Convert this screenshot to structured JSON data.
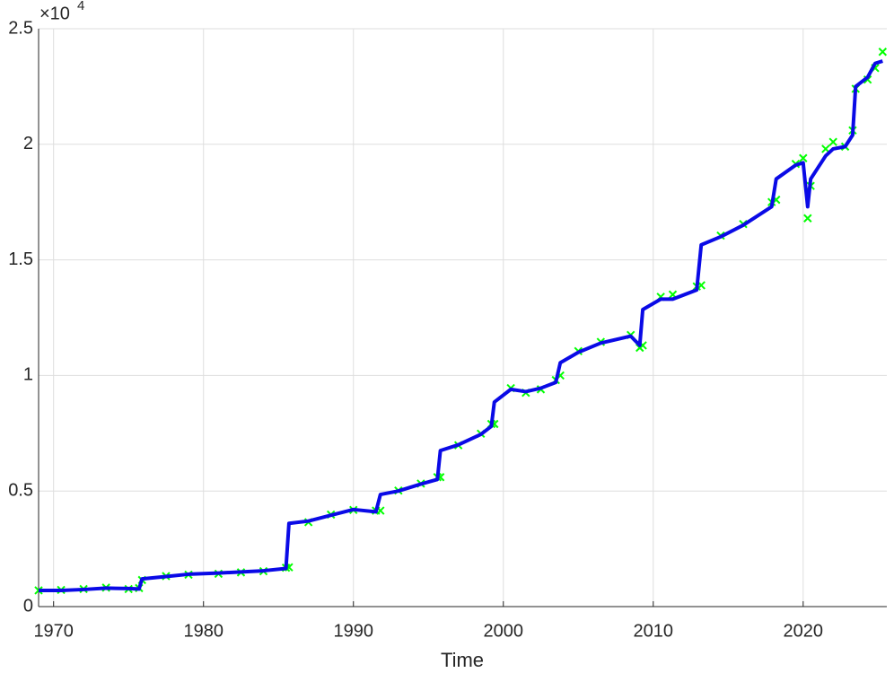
{
  "chart_data": {
    "type": "line",
    "x_label": "Time",
    "y_multiplier": "×10",
    "y_multiplier_exponent": "4",
    "x": [
      1969.0,
      1970.5,
      1972.0,
      1973.5,
      1975.0,
      1975.7,
      1975.9,
      1977.5,
      1979.0,
      1981.0,
      1982.5,
      1984.0,
      1985.5,
      1985.7,
      1987.0,
      1988.5,
      1990.0,
      1991.5,
      1991.8,
      1993.0,
      1994.5,
      1995.6,
      1995.8,
      1997.0,
      1998.5,
      1999.2,
      1999.4,
      2000.5,
      2001.5,
      2002.5,
      2003.5,
      2003.8,
      2005.0,
      2006.5,
      2008.5,
      2009.1,
      2009.3,
      2010.5,
      2011.3,
      2012.9,
      2013.2,
      2014.5,
      2016.0,
      2017.9,
      2018.2,
      2019.5,
      2020.0,
      2020.3,
      2020.5,
      2021.5,
      2022.0,
      2022.8,
      2023.3,
      2023.5,
      2024.3,
      2024.8,
      2025.3
    ],
    "series": [
      {
        "color": "#00ff00",
        "marker": "x",
        "line": false,
        "values": [
          700,
          720,
          760,
          820,
          760,
          800,
          1150,
          1320,
          1380,
          1420,
          1480,
          1530,
          1680,
          1700,
          3650,
          3980,
          4180,
          4150,
          4150,
          5020,
          5320,
          5600,
          5600,
          6980,
          7480,
          7900,
          7900,
          9450,
          9250,
          9400,
          9800,
          10000,
          11050,
          11450,
          11750,
          11200,
          11300,
          13400,
          13500,
          13850,
          13900,
          16050,
          16550,
          17500,
          17600,
          19150,
          19400,
          16800,
          18200,
          19800,
          20100,
          19900,
          20600,
          22400,
          22800,
          23300,
          24000
        ]
      },
      {
        "color": "#0a0ae6",
        "marker": null,
        "line": true,
        "values": [
          700,
          700,
          740,
          800,
          780,
          760,
          1200,
          1300,
          1400,
          1450,
          1500,
          1550,
          1650,
          3600,
          3700,
          3950,
          4200,
          4100,
          4850,
          5000,
          5300,
          5500,
          6750,
          7000,
          7450,
          7800,
          8850,
          9400,
          9300,
          9450,
          9700,
          10550,
          11000,
          11400,
          11700,
          11300,
          12850,
          13300,
          13300,
          13700,
          15650,
          16000,
          16500,
          17300,
          18500,
          19100,
          19200,
          17300,
          18500,
          19500,
          19800,
          19900,
          20400,
          22500,
          22900,
          23500,
          23600
        ]
      }
    ],
    "xlim": [
      1969.0,
      2025.58
    ],
    "xticks": [
      1970,
      1980,
      1990,
      2000,
      2010,
      2020
    ],
    "ylim": [
      0,
      25000
    ],
    "yticks": [
      0,
      {
        "value": 5000,
        "label": "0.5"
      },
      {
        "value": 10000,
        "label": "1"
      },
      {
        "value": 15000,
        "label": "1.5"
      },
      {
        "value": 20000,
        "label": "2"
      },
      {
        "value": 25000,
        "label": "2.5"
      }
    ],
    "grid": true
  }
}
